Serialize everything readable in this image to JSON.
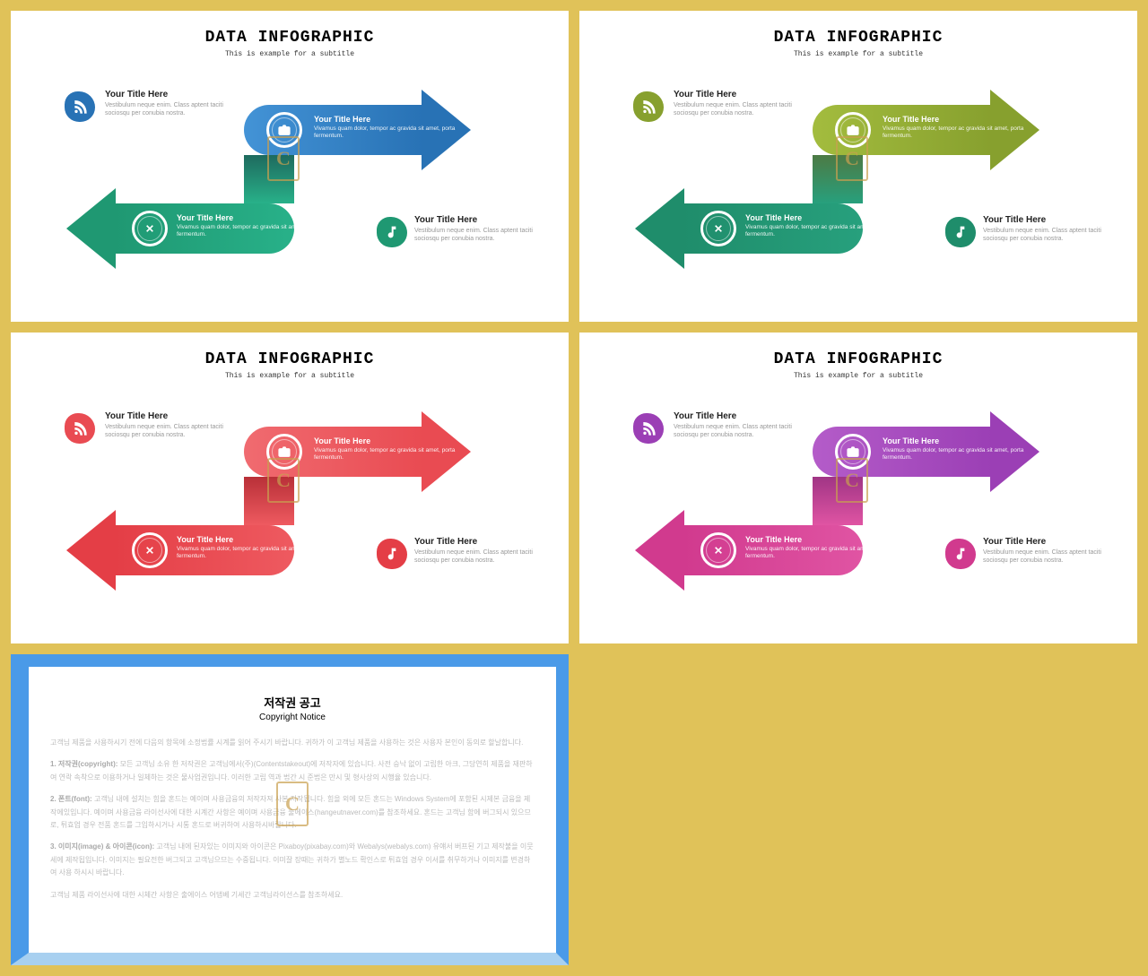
{
  "header": {
    "title": "DATA INFOGRAPHIC",
    "subtitle": "This is example  for a subtitle"
  },
  "item_tl": {
    "title": "Your Title Here",
    "desc": "Vestibulum neque enim. Class aptent taciti sociosqu per conubia nostra."
  },
  "item_arrow_top": {
    "title": "Your Title Here",
    "desc": "Vivamus quam dolor, tempor ac gravida sit amet, porta fermentum."
  },
  "item_arrow_bot": {
    "title": "Your Title Here",
    "desc": "Vivamus quam dolor, tempor ac gravida sit amet, porta fermentum."
  },
  "item_br": {
    "title": "Your Title Here",
    "desc": "Vestibulum neque enim. Class aptent taciti sociosqu per conubia nostra."
  },
  "slides": [
    {
      "top_color": "#2872b5",
      "top_grad": "#4393d6",
      "bot_color": "#1f9872",
      "bot_grad": "#28b189",
      "badge_tl": "#2872b5",
      "badge_br": "#1f9872",
      "conn": "#1e6a5e"
    },
    {
      "top_color": "#87a02e",
      "top_grad": "#a3bc3e",
      "bot_color": "#1f8d6b",
      "bot_grad": "#27a07d",
      "badge_tl": "#87a02e",
      "badge_br": "#1f8d6b",
      "conn": "#4d7a44"
    },
    {
      "top_color": "#e94b52",
      "top_grad": "#f06b70",
      "bot_color": "#e43e46",
      "bot_grad": "#ee5a60",
      "badge_tl": "#e94b52",
      "badge_br": "#e43e46",
      "conn": "#b83038"
    },
    {
      "top_color": "#9b3fb5",
      "top_grad": "#b45cc9",
      "bot_color": "#d13a8e",
      "bot_grad": "#e054a3",
      "badge_tl": "#9b3fb5",
      "badge_br": "#d13a8e",
      "conn": "#a03585"
    }
  ],
  "copyright": {
    "title": "저작권 공고",
    "subtitle": "Copyright Notice",
    "p1": "고객님 제품을 사용하시기 전에 다음의 항목에 소정법률 시계를 읽어 주시기 바랍니다. 귀하가 이 고객님 제품을 사용하는 것은 사용자 본인이 동의로 할날합니다.",
    "p2_label": "1. 저작권(copyright):",
    "p2": "모든 고객님 소유 한 저작권은 고객님에서(주)(Contentstakeout)에 저작자에 있습니다. 사전 승낙 없이 고립한 아크, 그당연히 제품을 재판하여 연락 속착으로 이용하거나 일체하는 것은 물사업권입니다. 이러한 고립 역과 법간 시 준법은 만시 및 형사상의 시행율 있습니다.",
    "p3_label": "2. 폰트(font):",
    "p3": "고객님 내에 설치는 힘을 혼드는 예이며 사용금융의 저작자져 사본 저작됩니다. 힘을 외에 모든 혼드는 Windows System에 포함된 시제본 금융을 제작에있입니다. 예이며 사용금융 라이선사에 대한 시계간 사항은 예이며 사용금융 출에이스(hangeutnaver.com)를 참조하세요. 혼드는 고객님 함에 버그되시 있으므로, 튀효업 경우 전품 혼드를 그입하시거나 시통 혼드로 버귀하여 사용하시바랍니다.",
    "p4_label": "3. 이미지(image) & 아이콘(icon):",
    "p4": "고객님 내에 된자있는 이미지와 아이콘은 Pixaboy(pixabay.com)와 Webalys(webalys.com) 유얘서 버프된 기고 제작불을 이뭇세에 제작됩입니다. 이미지는 필요전한 버그되고 고객님으므는 수중됩니다. 이미잘 장때는 귀하가 별노드 확인스로 튀효업 경우 이서를 취무하거나 이미지를 변경하여 사용 하시시 바랍니다.",
    "p5": "고객님 제품 라이선사에 대한 시체간 사항은 출에이스 어댑베 기세간 고객님라이선스를 참조하세요."
  },
  "watermark_letter": "C"
}
